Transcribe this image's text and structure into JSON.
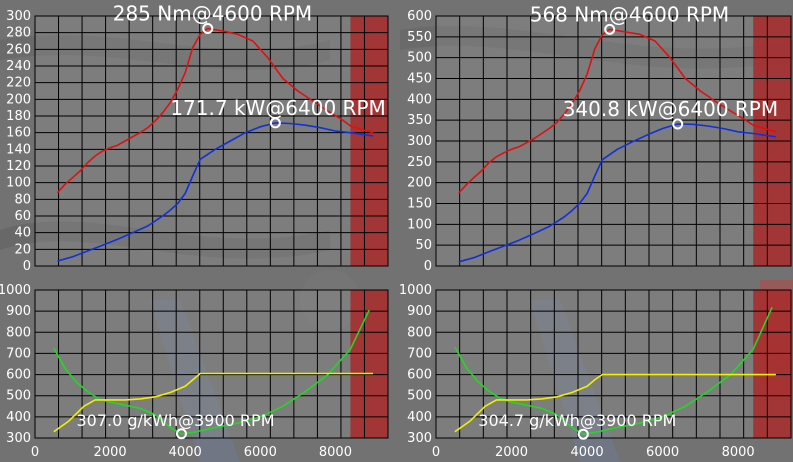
{
  "colors": {
    "torque": "#e01010",
    "power": "#1030dd",
    "afr": "#f0f000",
    "bsfc": "#22d822",
    "redline": "#a82828",
    "grid": "#000000",
    "marker": "#ffffff"
  },
  "chart_data": [
    {
      "type": "line",
      "title": "",
      "xlabel": "",
      "ylabel": "",
      "xlim": [
        0,
        9400
      ],
      "ylim": [
        0,
        300
      ],
      "yticks": [
        0,
        20,
        40,
        60,
        80,
        100,
        120,
        140,
        160,
        180,
        200,
        220,
        240,
        260,
        280,
        300
      ],
      "grid": true,
      "redline_from": 8400,
      "series": [
        {
          "key": "torque",
          "color_key": "torque",
          "x": [
            600,
            800,
            1000,
            1200,
            1400,
            1600,
            1800,
            2000,
            2200,
            2400,
            2600,
            2800,
            3000,
            3200,
            3400,
            3600,
            3800,
            4000,
            4200,
            4400,
            4600,
            5000,
            5400,
            5800,
            6200,
            6600,
            7000,
            7400,
            7800,
            8200,
            8400,
            9000
          ],
          "y": [
            88,
            98,
            106,
            114,
            124,
            132,
            138,
            142,
            145,
            150,
            155,
            160,
            166,
            174,
            184,
            196,
            212,
            232,
            262,
            278,
            285,
            282,
            278,
            270,
            250,
            225,
            210,
            198,
            186,
            175,
            168,
            160
          ]
        },
        {
          "key": "power",
          "color_key": "power",
          "x": [
            600,
            1000,
            1400,
            1800,
            2200,
            2600,
            3000,
            3400,
            3600,
            3800,
            4000,
            4200,
            4400,
            4800,
            5200,
            5600,
            6000,
            6400,
            6800,
            7200,
            7600,
            8000,
            8400,
            9000
          ],
          "y": [
            6,
            11,
            18,
            25,
            32,
            40,
            48,
            60,
            67,
            75,
            87,
            108,
            128,
            140,
            150,
            160,
            167,
            171.7,
            171,
            169,
            166,
            162,
            160,
            156
          ]
        }
      ],
      "annotations": [
        {
          "text": "285 Nm@4600 RPM",
          "x": 4600,
          "y": 285
        },
        {
          "text": "171.7 kW@6400 RPM",
          "x": 6400,
          "y": 171.7
        }
      ]
    },
    {
      "type": "line",
      "title": "",
      "xlabel": "",
      "ylabel": "",
      "xlim": [
        0,
        9400
      ],
      "ylim": [
        0,
        600
      ],
      "yticks": [
        0,
        50,
        100,
        150,
        200,
        250,
        300,
        350,
        400,
        450,
        500,
        550,
        600
      ],
      "grid": true,
      "redline_from": 8400,
      "series": [
        {
          "key": "torque",
          "color_key": "torque",
          "x": [
            600,
            800,
            1000,
            1200,
            1400,
            1600,
            1800,
            2000,
            2200,
            2400,
            2600,
            2800,
            3000,
            3200,
            3400,
            3600,
            3800,
            4000,
            4200,
            4400,
            4600,
            5000,
            5400,
            5800,
            6200,
            6600,
            7000,
            7400,
            7800,
            8200,
            8400,
            9000
          ],
          "y": [
            175,
            195,
            212,
            228,
            248,
            262,
            272,
            280,
            286,
            296,
            306,
            318,
            330,
            345,
            365,
            390,
            420,
            460,
            520,
            555,
            568,
            562,
            556,
            540,
            500,
            450,
            420,
            395,
            372,
            350,
            338,
            322
          ]
        },
        {
          "key": "power",
          "color_key": "power",
          "x": [
            600,
            1000,
            1400,
            1800,
            2200,
            2600,
            3000,
            3400,
            3600,
            3800,
            4000,
            4200,
            4400,
            4800,
            5200,
            5600,
            6000,
            6400,
            6800,
            7200,
            7600,
            8000,
            8400,
            9000
          ],
          "y": [
            10,
            20,
            34,
            48,
            62,
            78,
            95,
            118,
            133,
            150,
            174,
            215,
            255,
            280,
            298,
            315,
            330,
            340.8,
            340,
            336,
            330,
            322,
            318,
            310
          ]
        }
      ],
      "annotations": [
        {
          "text": "568 Nm@4600 RPM",
          "x": 4600,
          "y": 568
        },
        {
          "text": "340.8 kW@6400 RPM",
          "x": 6400,
          "y": 340.8
        }
      ]
    },
    {
      "type": "line",
      "title": "",
      "xlabel": "",
      "ylabel": "",
      "xlim": [
        0,
        9400
      ],
      "ylim": [
        300,
        1000
      ],
      "yticks": [
        300,
        400,
        500,
        600,
        700,
        800,
        900,
        1000
      ],
      "xticks": [
        0,
        2000,
        4000,
        6000,
        8000
      ],
      "grid": true,
      "redline_from": 8400,
      "series": [
        {
          "key": "bsfc",
          "color_key": "bsfc",
          "x": [
            500,
            800,
            1100,
            1400,
            1700,
            2000,
            2400,
            2800,
            3200,
            3600,
            3900,
            4300,
            4800,
            5400,
            6000,
            6600,
            7200,
            7800,
            8400,
            8900
          ],
          "y": [
            725,
            630,
            565,
            520,
            485,
            470,
            455,
            440,
            410,
            350,
            320,
            330,
            350,
            370,
            400,
            450,
            520,
            600,
            720,
            905
          ]
        },
        {
          "key": "afr",
          "color_key": "afr",
          "x": [
            500,
            900,
            1300,
            1600,
            2000,
            2400,
            2800,
            3200,
            3600,
            4000,
            4200,
            4400,
            5000,
            6000,
            7000,
            8000,
            9000
          ],
          "y": [
            330,
            380,
            450,
            480,
            480,
            480,
            485,
            495,
            515,
            545,
            575,
            605,
            605,
            605,
            605,
            605,
            605
          ]
        }
      ],
      "annotations": [
        {
          "text": "307.0 g/kWh@3900 RPM",
          "x": 3900,
          "y": 320
        }
      ]
    },
    {
      "type": "line",
      "title": "",
      "xlabel": "",
      "ylabel": "",
      "xlim": [
        0,
        9400
      ],
      "ylim": [
        300,
        1000
      ],
      "yticks": [
        300,
        400,
        500,
        600,
        700,
        800,
        900,
        1000
      ],
      "xticks": [
        0,
        2000,
        4000,
        6000,
        8000
      ],
      "grid": true,
      "redline_from": 8400,
      "series": [
        {
          "key": "bsfc",
          "color_key": "bsfc",
          "x": [
            500,
            800,
            1100,
            1400,
            1700,
            2000,
            2400,
            2800,
            3200,
            3600,
            3900,
            4300,
            4800,
            5400,
            6000,
            6600,
            7200,
            7800,
            8400,
            8900
          ],
          "y": [
            730,
            635,
            568,
            522,
            488,
            470,
            455,
            440,
            410,
            350,
            318,
            330,
            350,
            370,
            400,
            450,
            520,
            600,
            720,
            918
          ]
        },
        {
          "key": "afr",
          "color_key": "afr",
          "x": [
            500,
            900,
            1300,
            1600,
            2000,
            2400,
            2800,
            3200,
            3600,
            4000,
            4200,
            4400,
            5000,
            6000,
            7000,
            8000,
            9000
          ],
          "y": [
            330,
            380,
            450,
            480,
            480,
            480,
            485,
            495,
            515,
            545,
            575,
            600,
            600,
            600,
            600,
            600,
            600
          ]
        }
      ],
      "annotations": [
        {
          "text": "304.7 g/kWh@3900 RPM",
          "x": 3900,
          "y": 318
        }
      ]
    }
  ]
}
